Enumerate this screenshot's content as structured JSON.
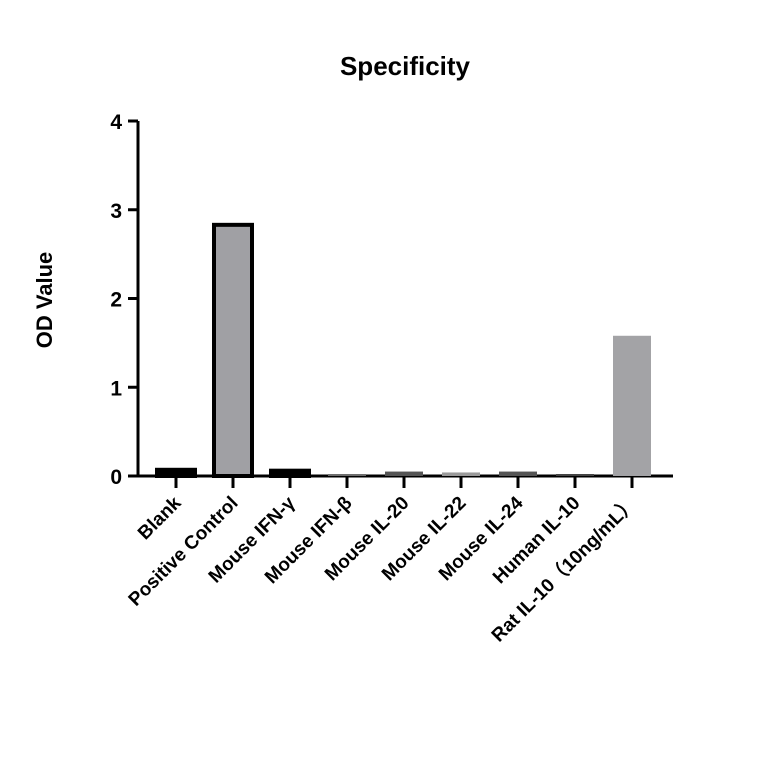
{
  "chart_data": {
    "type": "bar",
    "title": "Specificity",
    "xlabel": "",
    "ylabel": "OD Value",
    "ylim": [
      0,
      4
    ],
    "yticks": [
      0,
      1,
      2,
      3,
      4
    ],
    "grid": false,
    "legend": null,
    "categories": [
      "Blank",
      "Positive Control",
      "Mouse IFN-γ",
      "Mouse IFN-β",
      "Mouse IL-20",
      "Mouse IL-22",
      "Mouse IL-24",
      "Human IL-10",
      "Rat IL-10（10ng/mL）"
    ],
    "values": [
      0.07,
      2.83,
      0.06,
      0.02,
      0.05,
      0.04,
      0.05,
      0.01,
      1.58
    ],
    "bar_styles": [
      {
        "fill": "#000000",
        "outline": true
      },
      {
        "fill": "#a0a0a4",
        "outline": true
      },
      {
        "fill": "#000000",
        "outline": true
      },
      {
        "fill": "#6e6e6e",
        "outline": false
      },
      {
        "fill": "#555555",
        "outline": false
      },
      {
        "fill": "#9a9a9a",
        "outline": false
      },
      {
        "fill": "#555555",
        "outline": false
      },
      {
        "fill": "#444444",
        "outline": false
      },
      {
        "fill": "#a3a3a6",
        "outline": false
      }
    ]
  }
}
